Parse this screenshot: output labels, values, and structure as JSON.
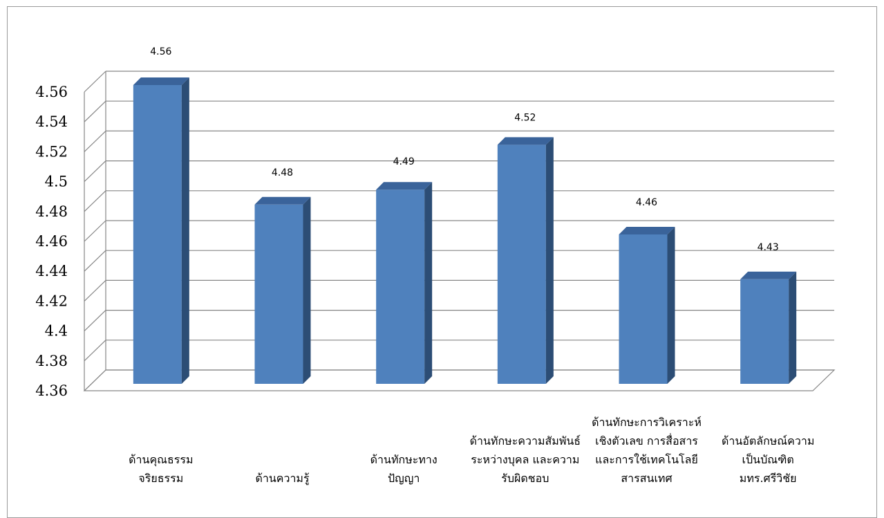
{
  "chart_data": {
    "type": "bar",
    "style": "3d-column",
    "categories": [
      "ด้านคุณธรรม\nจริยธรรม",
      "ด้านความรู้",
      "ด้านทักษะทาง\nปัญญา",
      "ด้านทักษะความสัมพันธ์\nระหว่างบุคล และความ\nรับผิดชอบ",
      "ด้านทักษะการวิเคราะห์\nเชิงตัวเลข การสื่อสาร\nและการใช้เทคโนโลยี\nสารสนเทศ",
      "ด้านอัตลักษณ์ความ\nเป็นบัณฑิต\nมทร.ศรีวิชัย"
    ],
    "values": [
      4.56,
      4.48,
      4.49,
      4.52,
      4.46,
      4.43
    ],
    "data_labels": [
      "4.56",
      "4.48",
      "4.49",
      "4.52",
      "4.46",
      "4.43"
    ],
    "y_tick_labels": [
      "4.36",
      "4.38",
      "4.4",
      "4.42",
      "4.44",
      "4.46",
      "4.48",
      "4.5",
      "4.52",
      "4.54",
      "4.56"
    ],
    "ylim": [
      4.36,
      4.56
    ],
    "grid": true,
    "legend": "none",
    "title": "",
    "xlabel": "",
    "ylabel": "",
    "colors": {
      "bar_front": "#4f81bd",
      "bar_side": "#2c4d75",
      "bar_top": "#3a639a",
      "grid": "#868686"
    }
  }
}
